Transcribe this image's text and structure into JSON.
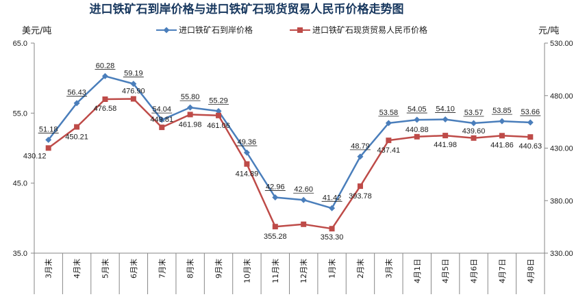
{
  "chart_data": {
    "type": "line",
    "title": "进口铁矿石到岸价格与进口铁矿石现货贸易人民币价格走势图",
    "left_unit": "美元/吨",
    "right_unit": "元/吨",
    "categories": [
      "3月末",
      "4月末",
      "5月末",
      "6月末",
      "7月末",
      "8月末",
      "9月末",
      "10月末",
      "11月末",
      "12月末",
      "1月末",
      "2月末",
      "3月末",
      "4月1日",
      "4月5日",
      "4月6日",
      "4月7日",
      "4月8日"
    ],
    "y_left": {
      "min": 35,
      "max": 65,
      "ticks": [
        "35.0",
        "45.0",
        "55.0",
        "65.0"
      ]
    },
    "y_right": {
      "min": 330,
      "max": 530,
      "ticks": [
        "330.00",
        "380.00",
        "430.00",
        "480.00",
        "530.00"
      ]
    },
    "legend_position": "top",
    "grid": false,
    "series": [
      {
        "name": "进口铁矿石到岸价格",
        "axis": "left",
        "color": "#4a7ebb",
        "marker": "diamond",
        "values": [
          51.18,
          56.43,
          60.28,
          59.19,
          54.04,
          55.8,
          55.29,
          49.36,
          42.96,
          42.6,
          41.42,
          48.79,
          53.58,
          54.05,
          54.1,
          53.57,
          53.85,
          53.66
        ],
        "labels": [
          "51.18",
          "56.43",
          "60.28",
          "59.19",
          "54.04",
          "55.80",
          "55.29",
          "49.36",
          "42.96",
          "42.60",
          "41.42",
          "48.79",
          "53.58",
          "54.05",
          "54.10",
          "53.57",
          "53.85",
          "53.66"
        ]
      },
      {
        "name": "进口铁矿石现货贸易人民币价格",
        "axis": "right",
        "color": "#be4b48",
        "marker": "square",
        "values": [
          430.12,
          450.21,
          476.58,
          476.9,
          449.81,
          461.98,
          461.06,
          414.89,
          355.28,
          357.5,
          353.3,
          393.78,
          437.41,
          440.88,
          441.98,
          439.6,
          441.86,
          440.63
        ],
        "labels": [
          "430.12",
          "450.21",
          "476.58",
          "476.90",
          "449.81",
          "461.98",
          "461.06",
          "414.89",
          "355.28",
          "",
          "353.30",
          "393.78",
          "437.41",
          "440.88",
          "441.98",
          "439.60",
          "441.86",
          "440.63"
        ]
      }
    ]
  }
}
